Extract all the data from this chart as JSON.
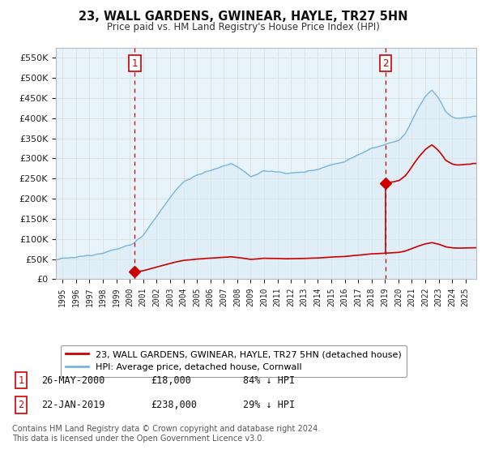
{
  "title": "23, WALL GARDENS, GWINEAR, HAYLE, TR27 5HN",
  "subtitle": "Price paid vs. HM Land Registry's House Price Index (HPI)",
  "sale1_date": 2000.38,
  "sale1_price": 18000,
  "sale2_date": 2019.05,
  "sale2_price": 238000,
  "hpi_color": "#7ab4d8",
  "hpi_fill": "#daeaf5",
  "sale_color": "#cc0000",
  "legend_label1": "23, WALL GARDENS, GWINEAR, HAYLE, TR27 5HN (detached house)",
  "legend_label2": "HPI: Average price, detached house, Cornwall",
  "table_row1": [
    "1",
    "26-MAY-2000",
    "£18,000",
    "84% ↓ HPI"
  ],
  "table_row2": [
    "2",
    "22-JAN-2019",
    "£238,000",
    "29% ↓ HPI"
  ],
  "footnote": "Contains HM Land Registry data © Crown copyright and database right 2024.\nThis data is licensed under the Open Government Licence v3.0.",
  "ylim": [
    0,
    575000
  ],
  "yticks": [
    0,
    50000,
    100000,
    150000,
    200000,
    250000,
    300000,
    350000,
    400000,
    450000,
    500000,
    550000
  ],
  "xlim_min": 1994.5,
  "xlim_max": 2025.8,
  "background": "#ffffff",
  "grid_color": "#dddddd",
  "hpi_scale_at_sale1": 112500,
  "hpi_scale_at_sale2": 335200
}
